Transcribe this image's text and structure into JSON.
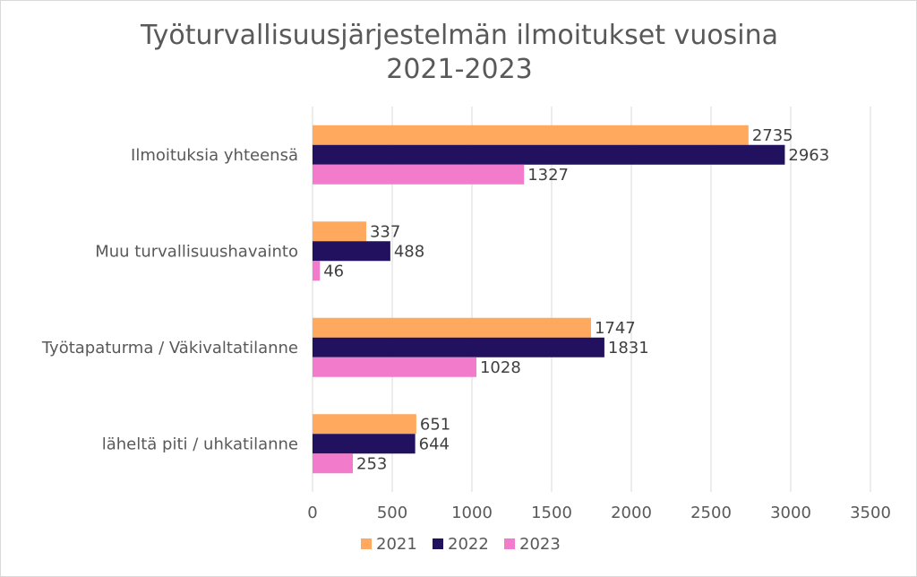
{
  "chart_data": {
    "type": "bar",
    "orientation": "horizontal",
    "title": "Työturvallisuusjärjestelmän ilmoitukset vuosina 2021-2023",
    "title_lines": [
      "Työturvallisuusjärjestelmän ilmoitukset vuosina",
      "2021-2023"
    ],
    "categories": [
      "Ilmoituksia yhteensä",
      "Muu turvallisuushavainto",
      "Työtapaturma / Väkivaltatilanne",
      "läheltä piti / uhkatilanne"
    ],
    "series": [
      {
        "name": "2021",
        "color": "#FFA95E",
        "values": [
          2735,
          337,
          1747,
          651
        ]
      },
      {
        "name": "2022",
        "color": "#22115E",
        "values": [
          2963,
          488,
          1831,
          644
        ]
      },
      {
        "name": "2023",
        "color": "#F27BCB",
        "values": [
          1327,
          46,
          1028,
          253
        ]
      }
    ],
    "xlim": [
      0,
      3500
    ],
    "xticks": [
      0,
      500,
      1000,
      1500,
      2000,
      2500,
      3000,
      3500
    ],
    "grid": true,
    "data_labels": true,
    "legend_position": "bottom"
  }
}
